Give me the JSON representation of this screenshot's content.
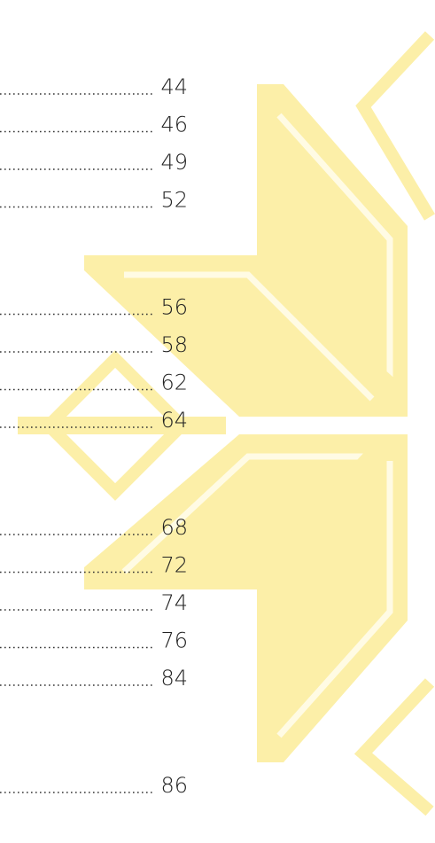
{
  "toc": {
    "sections": [
      {
        "entries": [
          {
            "page": 44
          },
          {
            "page": 46
          },
          {
            "page": 49
          },
          {
            "page": 52
          }
        ]
      },
      {
        "entries": [
          {
            "page": 56
          },
          {
            "page": 58
          },
          {
            "page": 62
          },
          {
            "page": 64
          }
        ]
      },
      {
        "entries": [
          {
            "page": 68
          },
          {
            "page": 72
          },
          {
            "page": 74
          },
          {
            "page": 76
          },
          {
            "page": 84
          }
        ]
      },
      {
        "entries": [
          {
            "page": 86
          }
        ]
      }
    ]
  }
}
